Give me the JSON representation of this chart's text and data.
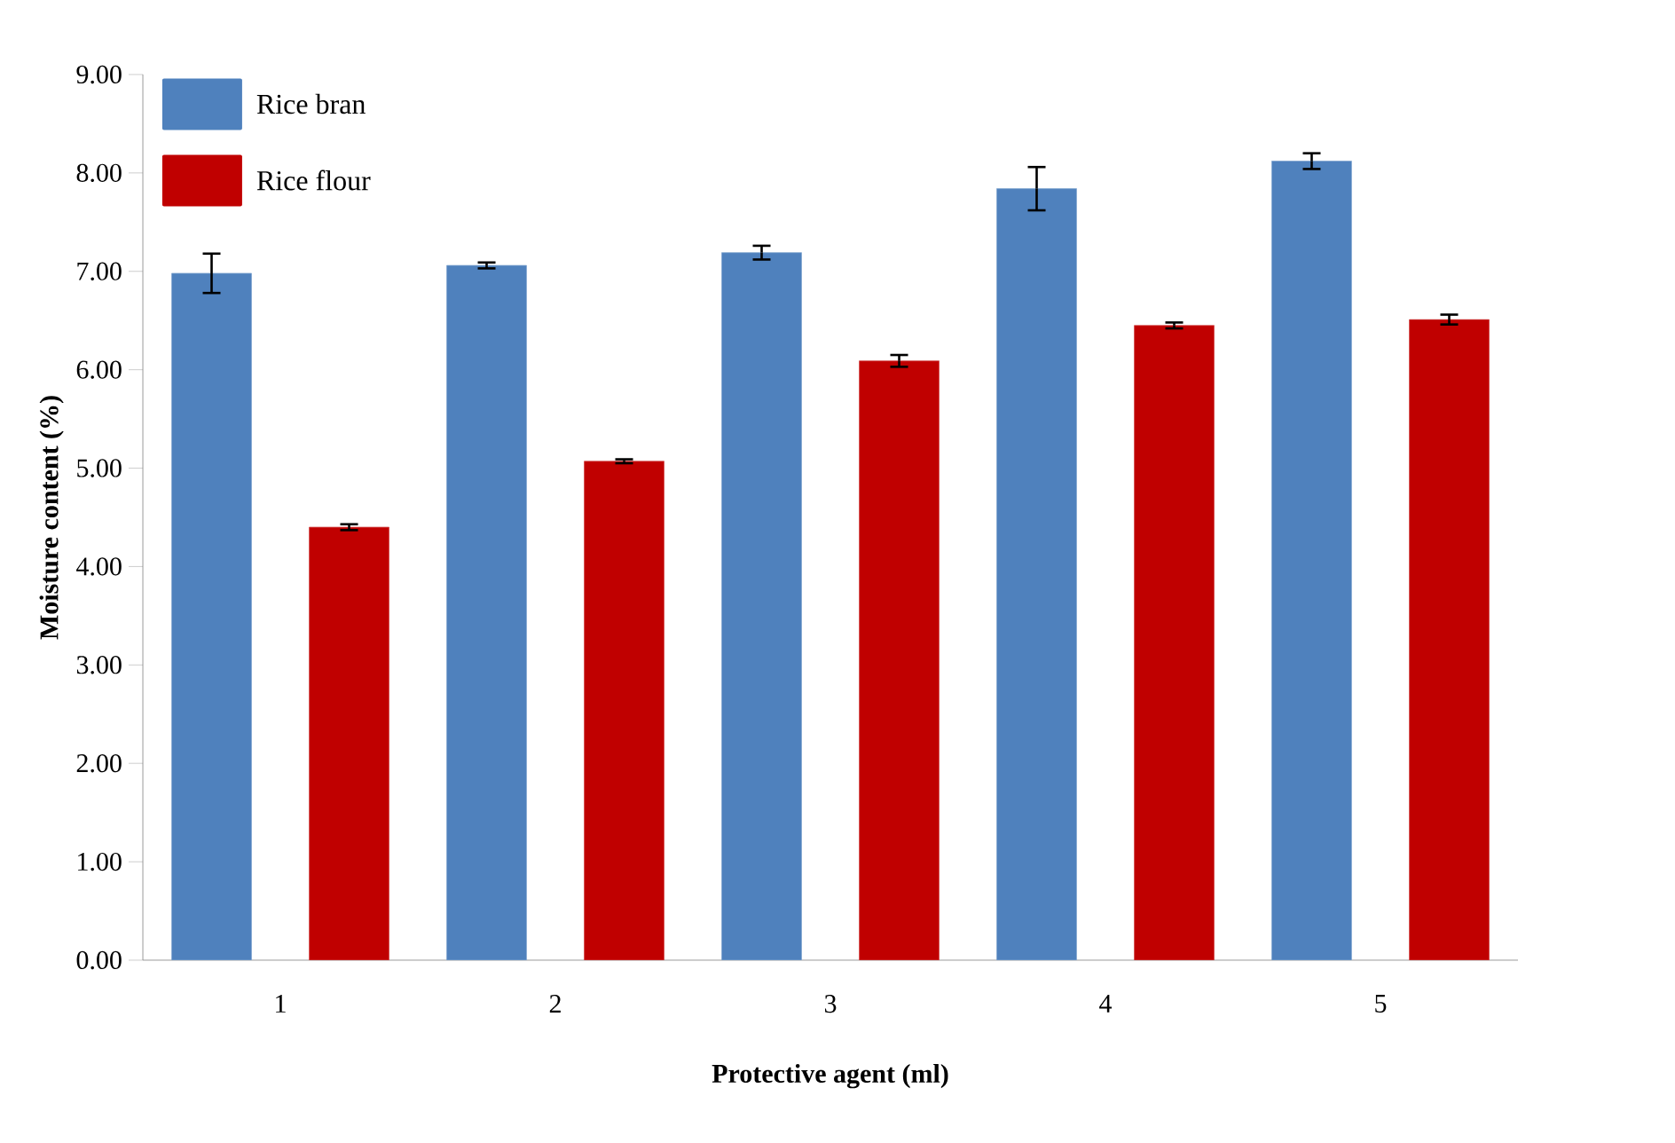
{
  "chart_data": {
    "type": "bar",
    "xlabel": "Protective agent (ml)",
    "ylabel": "Moisture content (%)",
    "categories": [
      "1",
      "2",
      "3",
      "4",
      "5"
    ],
    "series": [
      {
        "name": "Rice bran",
        "color": "#4f81bd",
        "values": [
          6.98,
          7.06,
          7.19,
          7.84,
          8.12
        ],
        "errors": [
          0.2,
          0.03,
          0.07,
          0.22,
          0.08
        ]
      },
      {
        "name": "Rice flour",
        "color": "#c00000",
        "values": [
          4.4,
          5.07,
          6.09,
          6.45,
          6.51
        ],
        "errors": [
          0.03,
          0.02,
          0.06,
          0.03,
          0.05
        ]
      }
    ],
    "ylim": [
      0,
      9
    ],
    "yticks": [
      {
        "value": 0,
        "label": "0.00"
      },
      {
        "value": 1,
        "label": "1.00"
      },
      {
        "value": 2,
        "label": "2.00"
      },
      {
        "value": 3,
        "label": "3.00"
      },
      {
        "value": 4,
        "label": "4.00"
      },
      {
        "value": 5,
        "label": "5.00"
      },
      {
        "value": 6,
        "label": "6.00"
      },
      {
        "value": 7,
        "label": "7.00"
      },
      {
        "value": 8,
        "label": "8.00"
      },
      {
        "value": 9,
        "label": "9.00"
      }
    ],
    "grid": false,
    "legend": "top left"
  }
}
